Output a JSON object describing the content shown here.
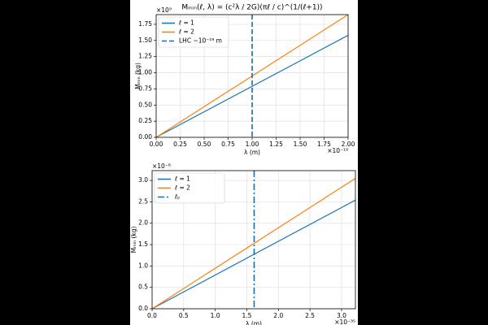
{
  "chart_data": [
    {
      "type": "line",
      "title": "Mₘᵢₙ(ℓ, λ) = (c²λ / 2G)(πℓ / c)^(1/(ℓ+1))",
      "xlabel": "λ (m)",
      "ylabel": "Mₘᵢₙ (kg)",
      "x_offset": "×10⁻¹⁹",
      "y_offset": "×10⁹",
      "x": [
        0,
        2
      ],
      "series": [
        {
          "name": "ℓ = 1",
          "color": "#1f77b4",
          "values": [
            0,
            1.58
          ]
        },
        {
          "name": "ℓ = 2",
          "color": "#ff7f0e",
          "values": [
            0,
            1.9
          ]
        }
      ],
      "reference_lines": [
        {
          "name": "LHC ~10⁻¹⁹ m",
          "x": 1,
          "color": "#1f6aa8",
          "dash": "dashed"
        }
      ],
      "xlim": [
        0,
        2
      ],
      "ylim": [
        0,
        1.9
      ],
      "xticks": [
        {
          "value": 0,
          "label": "0.00"
        },
        {
          "value": 0.25,
          "label": "0.25"
        },
        {
          "value": 0.5,
          "label": "0.50"
        },
        {
          "value": 0.75,
          "label": "0.75"
        },
        {
          "value": 1,
          "label": "1.00"
        },
        {
          "value": 1.25,
          "label": "1.25"
        },
        {
          "value": 1.5,
          "label": "1.50"
        },
        {
          "value": 1.75,
          "label": "1.75"
        },
        {
          "value": 2,
          "label": "2.00"
        }
      ],
      "yticks": [
        {
          "value": 0,
          "label": "0.00"
        },
        {
          "value": 0.25,
          "label": "0.25"
        },
        {
          "value": 0.5,
          "label": "0.50"
        },
        {
          "value": 0.75,
          "label": "0.75"
        },
        {
          "value": 1,
          "label": "1.00"
        },
        {
          "value": 1.25,
          "label": "1.25"
        },
        {
          "value": 1.5,
          "label": "1.50"
        },
        {
          "value": 1.75,
          "label": "1.75"
        }
      ],
      "grid": true,
      "legend": "upper left"
    },
    {
      "type": "line",
      "xlabel": "λ (m)",
      "ylabel": "Mₘᵢₙ (kg)",
      "x_offset": "×10⁻³⁵",
      "y_offset": "×10⁻⁸",
      "x": [
        0,
        3.22
      ],
      "series": [
        {
          "name": "ℓ = 1",
          "color": "#1f77b4",
          "values": [
            0,
            2.54
          ]
        },
        {
          "name": "ℓ = 2",
          "color": "#ff7f0e",
          "values": [
            0,
            3.05
          ]
        }
      ],
      "reference_lines": [
        {
          "name": "ℓₚ",
          "x": 1.616,
          "color": "#1f6aa8",
          "dash": "dashdot"
        }
      ],
      "xlim": [
        0,
        3.22
      ],
      "ylim": [
        0,
        3.23
      ],
      "xticks": [
        {
          "value": 0,
          "label": "0.0"
        },
        0.5,
        {
          "value": 1,
          "label": "1.0"
        },
        1.5,
        {
          "value": 2,
          "label": "2.0"
        },
        2.5,
        {
          "value": 3,
          "label": "3.0"
        }
      ],
      "yticks": [
        {
          "value": 0,
          "label": "0.0"
        },
        0.5,
        {
          "value": 1,
          "label": "1.0"
        },
        1.5,
        {
          "value": 2,
          "label": "2.0"
        },
        2.5,
        {
          "value": 3,
          "label": "3.0"
        }
      ],
      "grid": true,
      "legend": "upper left"
    }
  ]
}
